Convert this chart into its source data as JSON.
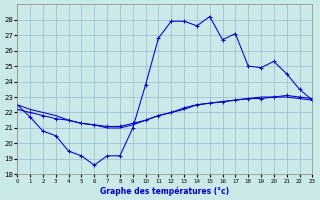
{
  "title": "Graphe des températures (°c)",
  "bg_color": "#cce9ea",
  "line_color": "#0000cc",
  "grid_color": "#99bbcc",
  "ylim": [
    18,
    29
  ],
  "xlim": [
    0,
    23
  ],
  "yticks": [
    18,
    19,
    20,
    21,
    22,
    23,
    24,
    25,
    26,
    27,
    28
  ],
  "xticks": [
    0,
    1,
    2,
    3,
    4,
    5,
    6,
    7,
    8,
    9,
    10,
    11,
    12,
    13,
    14,
    15,
    16,
    17,
    18,
    19,
    20,
    21,
    22,
    23
  ],
  "curve1_x": [
    0,
    1,
    2,
    3,
    4,
    5,
    6,
    7,
    8,
    9,
    10,
    11,
    12,
    13,
    14,
    15,
    16,
    17,
    18,
    19,
    20,
    21,
    22,
    23
  ],
  "curve1_y": [
    22.5,
    21.7,
    20.8,
    20.5,
    19.5,
    19.2,
    18.6,
    19.2,
    19.2,
    21.0,
    23.8,
    26.8,
    27.9,
    27.9,
    27.6,
    28.2,
    26.7,
    27.1,
    25.0,
    24.9,
    25.3,
    24.5,
    23.5,
    22.8
  ],
  "curve2_x": [
    0,
    1,
    2,
    3,
    4,
    5,
    6,
    7,
    8,
    9,
    10,
    11,
    12,
    13,
    14,
    15,
    16,
    17,
    18,
    19,
    20,
    21,
    22,
    23
  ],
  "curve2_y": [
    22.2,
    22.0,
    21.8,
    21.6,
    21.5,
    21.3,
    21.2,
    21.1,
    21.1,
    21.3,
    21.5,
    21.8,
    22.0,
    22.3,
    22.5,
    22.6,
    22.7,
    22.8,
    22.9,
    22.9,
    23.0,
    23.1,
    23.0,
    22.9
  ],
  "curve3_x": [
    0,
    1,
    2,
    3,
    4,
    5,
    6,
    7,
    8,
    9,
    10,
    11,
    12,
    13,
    14,
    15,
    16,
    17,
    18,
    19,
    20,
    21,
    22,
    23
  ],
  "curve3_y": [
    22.5,
    22.2,
    22.0,
    21.8,
    21.5,
    21.3,
    21.2,
    21.0,
    21.0,
    21.2,
    21.5,
    21.8,
    22.0,
    22.2,
    22.5,
    22.6,
    22.7,
    22.8,
    22.9,
    23.0,
    23.0,
    23.0,
    22.9,
    22.8
  ]
}
